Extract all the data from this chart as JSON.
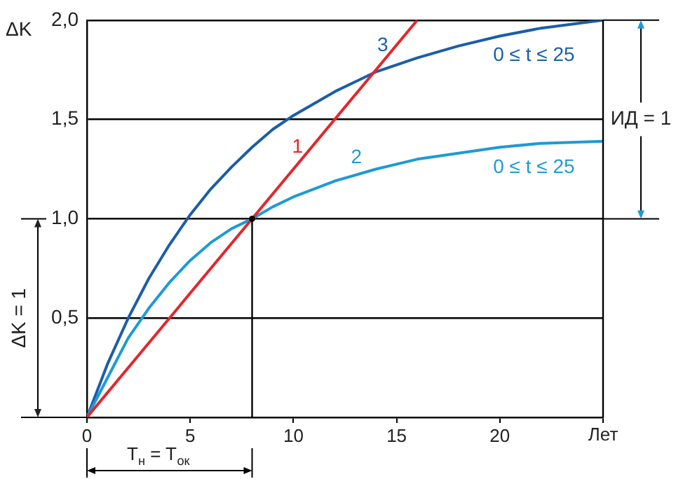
{
  "chart_data": {
    "type": "line",
    "xlabel": "Лет",
    "ylabel": "ΔK",
    "xlim": [
      0,
      25
    ],
    "ylim": [
      0,
      2
    ],
    "xticks": [
      0,
      5,
      10,
      15,
      20,
      {
        "value": 25,
        "label": null
      }
    ],
    "yticks": [
      {
        "value": 0.5,
        "label": "0,5"
      },
      {
        "value": 1,
        "label": "1,0"
      },
      {
        "value": 1.5,
        "label": "1,5"
      },
      {
        "value": 2,
        "label": "2,0"
      }
    ],
    "grid": "y",
    "legend": false,
    "series": [
      {
        "name": "1",
        "color": "#e3262b",
        "x": [
          0,
          16
        ],
        "values": [
          0,
          2
        ]
      },
      {
        "name": "2",
        "color": "#1e9ad6",
        "x": [
          0,
          1,
          2,
          3,
          4,
          5,
          6,
          7,
          8,
          9,
          10,
          12,
          14,
          16,
          18,
          20,
          22,
          25
        ],
        "values": [
          0,
          0.2,
          0.4,
          0.55,
          0.68,
          0.79,
          0.88,
          0.95,
          1,
          1.06,
          1.11,
          1.19,
          1.25,
          1.3,
          1.33,
          1.36,
          1.38,
          1.39
        ]
      },
      {
        "name": "3",
        "color": "#1a5ea8",
        "x": [
          0,
          1,
          2,
          3,
          4,
          5,
          6,
          7,
          8,
          9,
          10,
          12,
          14,
          16,
          18,
          20,
          22,
          25
        ],
        "values": [
          0,
          0.27,
          0.5,
          0.7,
          0.87,
          1.02,
          1.15,
          1.26,
          1.36,
          1.45,
          1.52,
          1.64,
          1.74,
          1.81,
          1.87,
          1.92,
          1.96,
          2
        ]
      }
    ],
    "ref_lines": [
      {
        "axis": "x",
        "value": 8,
        "color": "#000000"
      }
    ],
    "annotations": [
      "0 ≤ t ≤ 25",
      "0 ≤ t ≤ 25",
      "ИД = 1",
      "ΔK = 1",
      "T$_{н}$ = T$_{ок}$"
    ]
  }
}
